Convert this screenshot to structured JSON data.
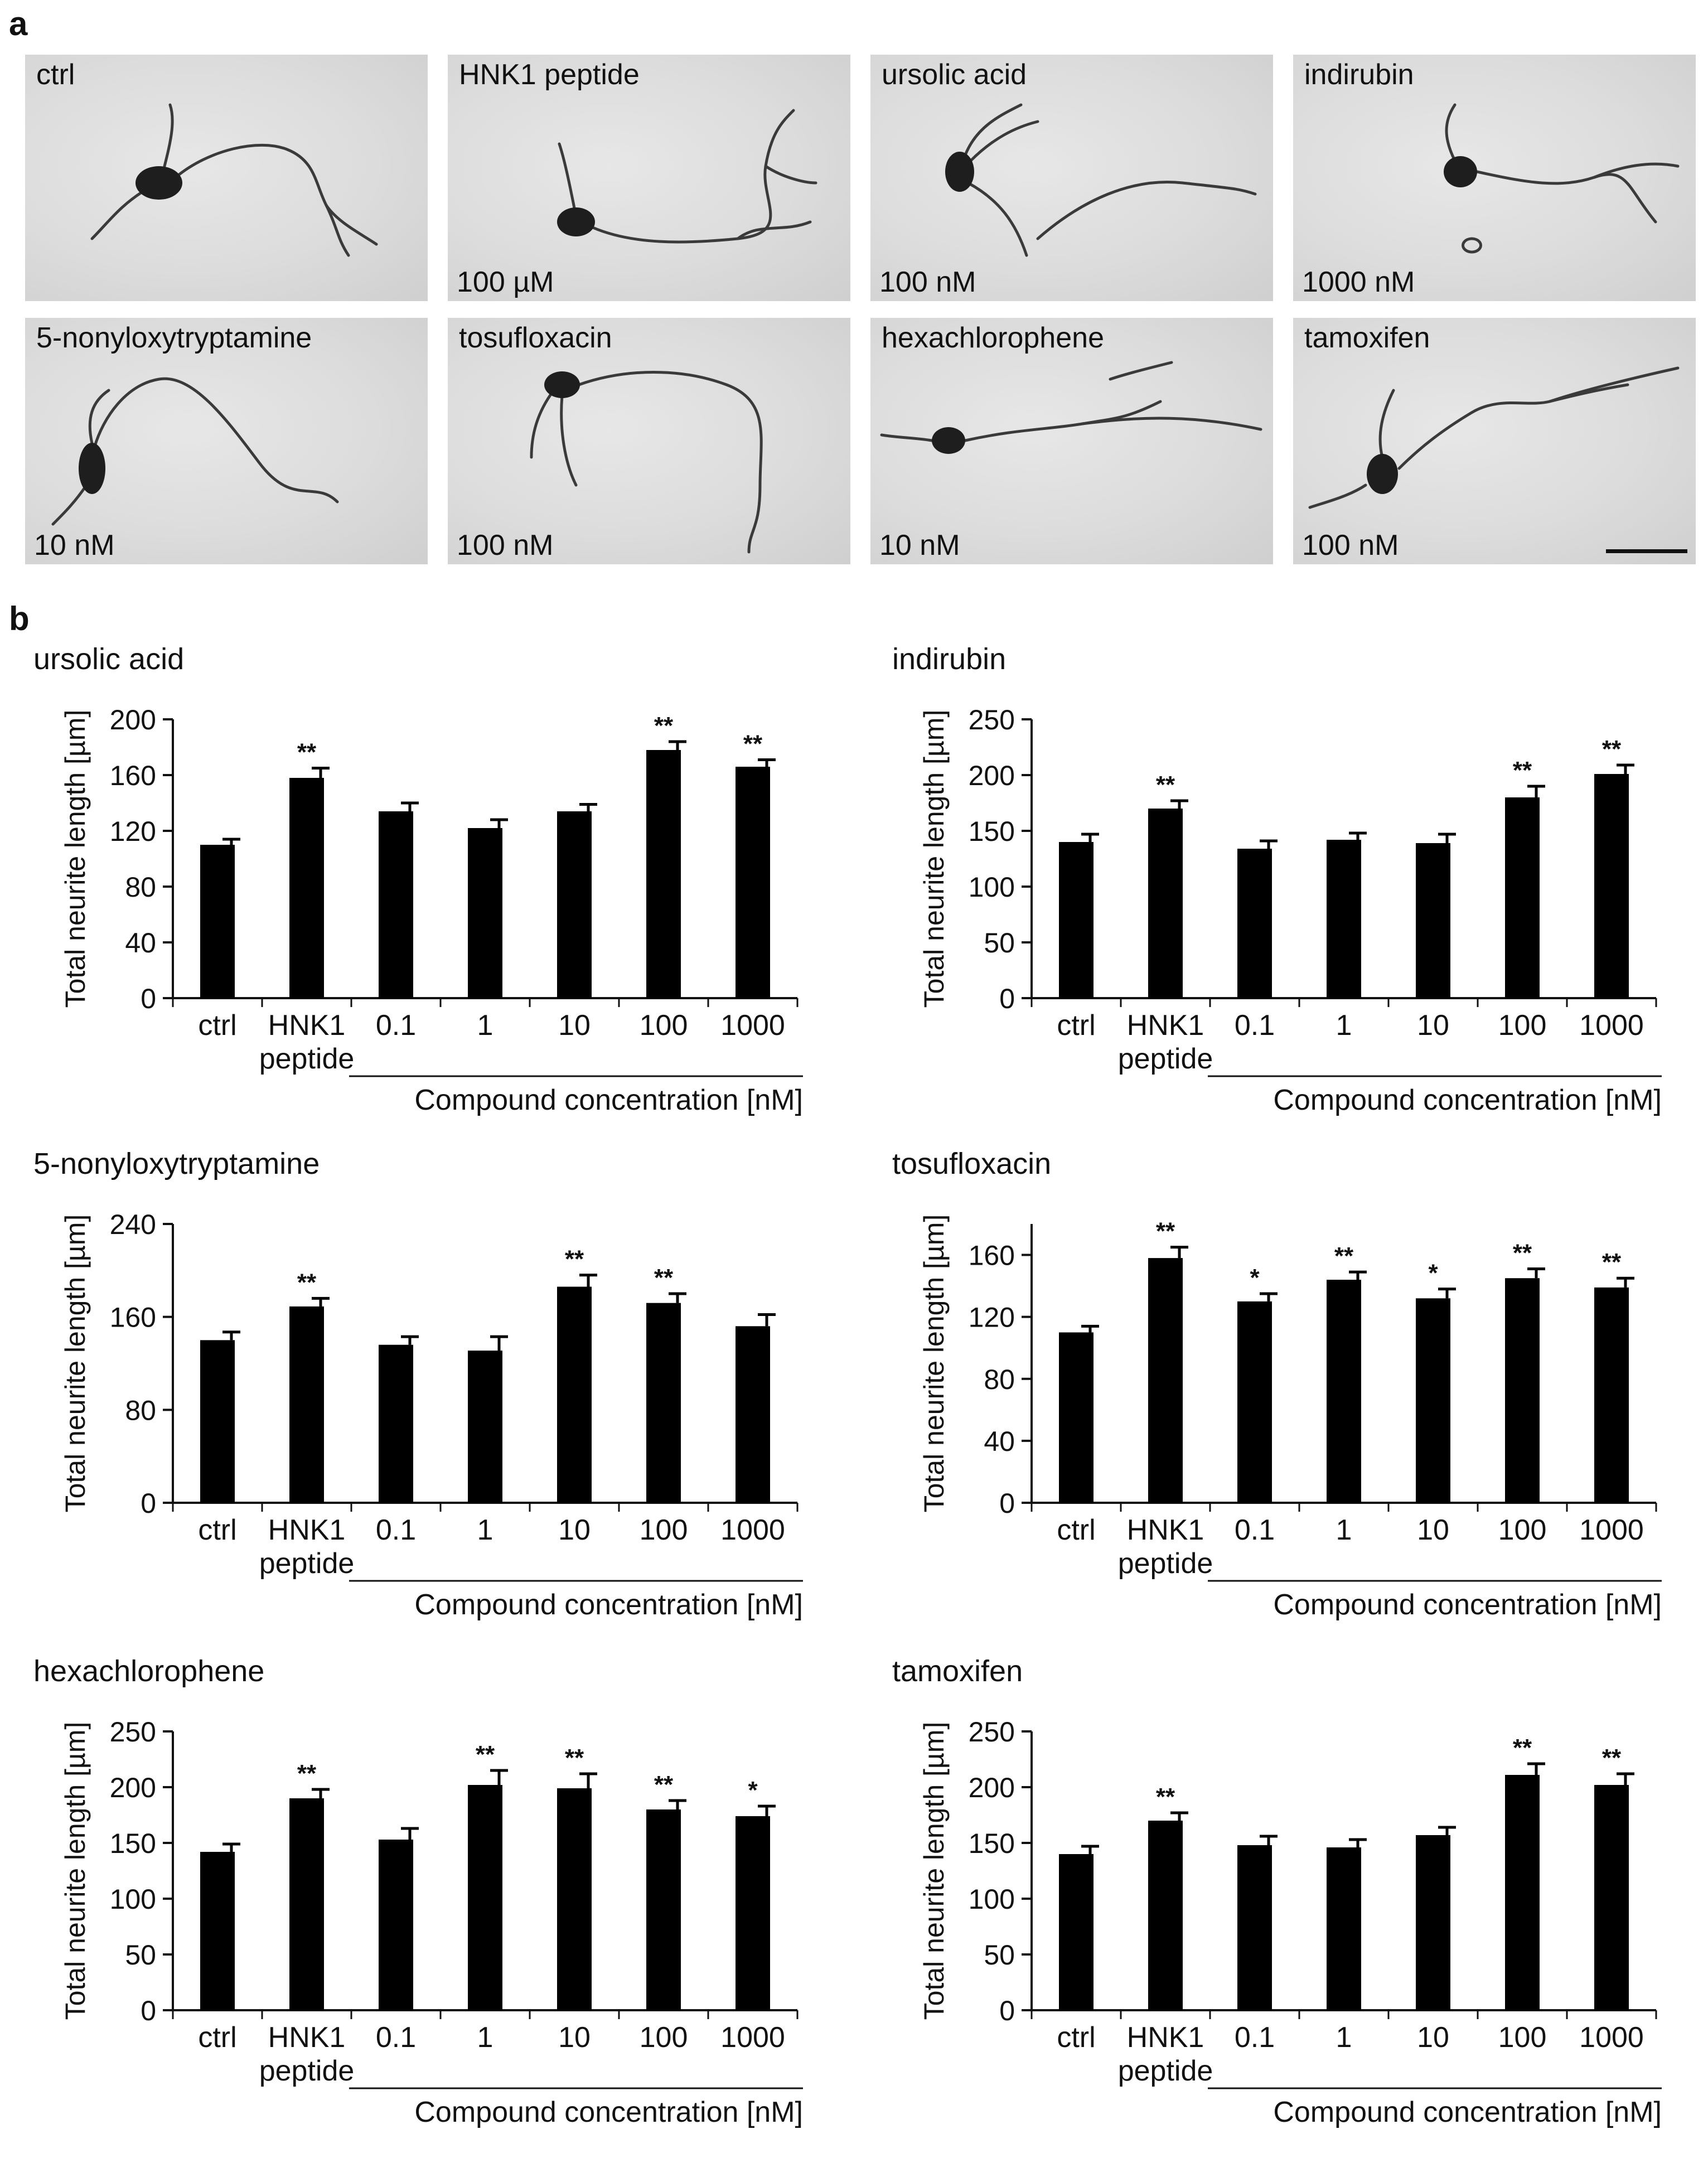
{
  "panel_a": {
    "letter": "a",
    "images": [
      {
        "label": "ctrl",
        "concentration": ""
      },
      {
        "label": "HNK1 peptide",
        "concentration": "100 µM"
      },
      {
        "label": "ursolic acid",
        "concentration": "100 nM"
      },
      {
        "label": "indirubin",
        "concentration": "1000 nM"
      },
      {
        "label": "5-nonyloxytryptamine",
        "concentration": "10 nM"
      },
      {
        "label": "tosufloxacin",
        "concentration": "100 nM"
      },
      {
        "label": "hexachlorophene",
        "concentration": "10 nM"
      },
      {
        "label": "tamoxifen",
        "concentration": "100 nM"
      }
    ]
  },
  "panel_b": {
    "letter": "b",
    "category_labels": [
      "ctrl",
      "HNK1",
      "0.1",
      "1",
      "10",
      "100",
      "1000"
    ],
    "peptide_label": "peptide",
    "xlabel": "Compound concentration [nM]",
    "ylabel": "Total neurite length [µm]",
    "bar_color": "#000000"
  },
  "chart_data": [
    {
      "type": "bar",
      "title": "ursolic acid",
      "categories": [
        "ctrl",
        "HNK1 peptide",
        "0.1",
        "1",
        "10",
        "100",
        "1000"
      ],
      "values": [
        110,
        158,
        134,
        122,
        134,
        178,
        166
      ],
      "errors": [
        4,
        7,
        6,
        6,
        5,
        6,
        5
      ],
      "significance": [
        "",
        "**",
        "",
        "",
        "",
        "**",
        "**"
      ],
      "xlabel": "Compound concentration [nM]",
      "ylabel": "Total neurite length [µm]",
      "yticks": [
        0,
        40,
        80,
        120,
        160,
        200
      ],
      "ylim": [
        0,
        200
      ]
    },
    {
      "type": "bar",
      "title": "indirubin",
      "categories": [
        "ctrl",
        "HNK1 peptide",
        "0.1",
        "1",
        "10",
        "100",
        "1000"
      ],
      "values": [
        140,
        170,
        134,
        142,
        139,
        180,
        201
      ],
      "errors": [
        7,
        7,
        7,
        6,
        8,
        10,
        8
      ],
      "significance": [
        "",
        "**",
        "",
        "",
        "",
        "**",
        "**"
      ],
      "xlabel": "Compound concentration [nM]",
      "ylabel": "Total neurite length [µm]",
      "yticks": [
        0,
        50,
        100,
        150,
        200,
        250
      ],
      "ylim": [
        0,
        250
      ]
    },
    {
      "type": "bar",
      "title": "5-nonyloxytryptamine",
      "categories": [
        "ctrl",
        "HNK1 peptide",
        "0.1",
        "1",
        "10",
        "100",
        "1000"
      ],
      "values": [
        140,
        169,
        136,
        131,
        186,
        172,
        152
      ],
      "errors": [
        7,
        7,
        7,
        12,
        10,
        8,
        10
      ],
      "significance": [
        "",
        "**",
        "",
        "",
        "**",
        "**",
        ""
      ],
      "xlabel": "Compound concentration [nM]",
      "ylabel": "Total neurite length [µm]",
      "yticks": [
        0,
        80,
        160,
        240
      ],
      "ylim": [
        0,
        240
      ]
    },
    {
      "type": "bar",
      "title": "tosufloxacin",
      "categories": [
        "ctrl",
        "HNK1 peptide",
        "0.1",
        "1",
        "10",
        "100",
        "1000"
      ],
      "values": [
        110,
        158,
        130,
        144,
        132,
        145,
        139
      ],
      "errors": [
        4,
        7,
        5,
        5,
        6,
        6,
        6
      ],
      "significance": [
        "",
        "**",
        "*",
        "**",
        "*",
        "**",
        "**"
      ],
      "xlabel": "Compound concentration [nM]",
      "ylabel": "Total neurite length [µm]",
      "yticks": [
        0,
        40,
        80,
        120,
        160
      ],
      "ylim": [
        0,
        180
      ]
    },
    {
      "type": "bar",
      "title": "hexachlorophene",
      "categories": [
        "ctrl",
        "HNK1 peptide",
        "0.1",
        "1",
        "10",
        "100",
        "1000"
      ],
      "values": [
        142,
        190,
        153,
        202,
        199,
        180,
        174
      ],
      "errors": [
        7,
        8,
        10,
        13,
        13,
        8,
        9
      ],
      "significance": [
        "",
        "**",
        "",
        "**",
        "**",
        "**",
        "*"
      ],
      "xlabel": "Compound concentration [nM]",
      "ylabel": "Total neurite length [µm]",
      "yticks": [
        0,
        50,
        100,
        150,
        200,
        250
      ],
      "ylim": [
        0,
        250
      ]
    },
    {
      "type": "bar",
      "title": "tamoxifen",
      "categories": [
        "ctrl",
        "HNK1 peptide",
        "0.1",
        "1",
        "10",
        "100",
        "1000"
      ],
      "values": [
        140,
        170,
        148,
        146,
        157,
        211,
        202
      ],
      "errors": [
        7,
        7,
        8,
        7,
        7,
        10,
        10
      ],
      "significance": [
        "",
        "**",
        "",
        "",
        "",
        "**",
        "**"
      ],
      "xlabel": "Compound concentration [nM]",
      "ylabel": "Total neurite length [µm]",
      "yticks": [
        0,
        50,
        100,
        150,
        200,
        250
      ],
      "ylim": [
        0,
        250
      ]
    }
  ]
}
